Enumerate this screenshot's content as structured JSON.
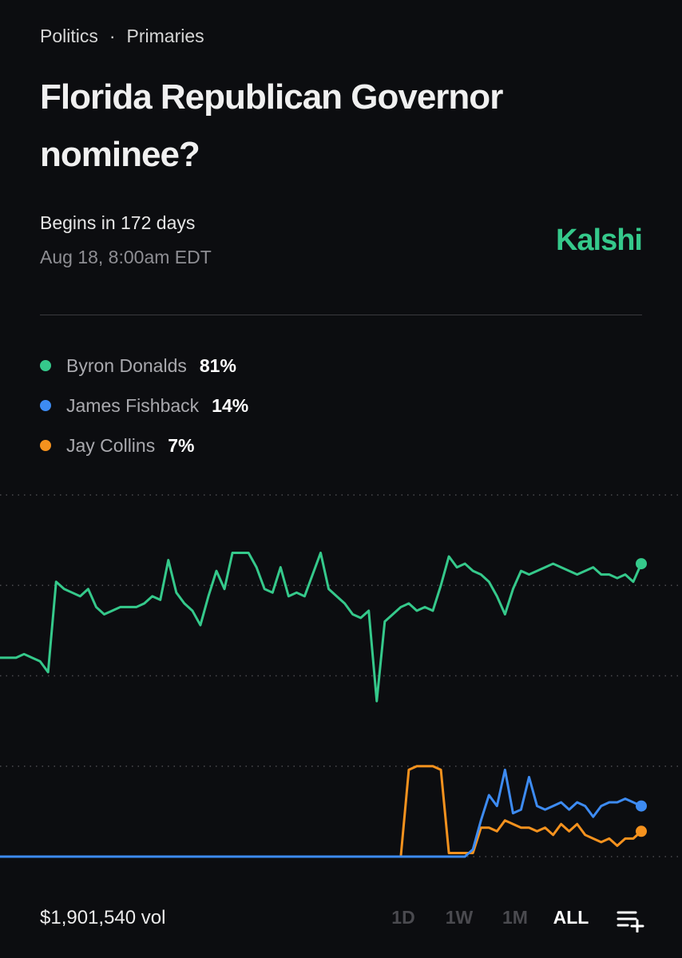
{
  "header": {
    "breadcrumb": [
      "Politics",
      "Primaries"
    ],
    "breadcrumb_separator": "·",
    "title": "Florida Republican Governor nominee?",
    "status": "Begins in 172 days",
    "date": "Aug 18, 8:00am EDT",
    "brand": "Kalshi"
  },
  "chart_data": {
    "type": "line",
    "ylim": [
      0,
      100
    ],
    "yticks": [
      0,
      25,
      50,
      75,
      100
    ],
    "grid": true,
    "series": [
      {
        "name": "Byron Donalds",
        "label": "81%",
        "color": "#35c98b",
        "values": [
          55,
          55,
          55,
          56,
          55,
          54,
          51,
          76,
          74,
          73,
          72,
          74,
          69,
          67,
          68,
          69,
          69,
          69,
          70,
          72,
          71,
          82,
          73,
          70,
          68,
          64,
          72,
          79,
          74,
          84,
          84,
          84,
          80,
          74,
          73,
          80,
          72,
          73,
          72,
          78,
          84,
          74,
          72,
          70,
          67,
          66,
          68,
          43,
          65,
          67,
          69,
          70,
          68,
          69,
          68,
          75,
          83,
          80,
          81,
          79,
          78,
          76,
          72,
          67,
          74,
          79,
          78,
          79,
          80,
          81,
          80,
          79,
          78,
          79,
          80,
          78,
          78,
          77,
          78,
          76,
          81
        ]
      },
      {
        "name": "James Fishback",
        "label": "14%",
        "color": "#3d8bf2",
        "values": [
          0,
          0,
          0,
          0,
          0,
          0,
          0,
          0,
          0,
          0,
          0,
          0,
          0,
          0,
          0,
          0,
          0,
          0,
          0,
          0,
          0,
          0,
          0,
          0,
          0,
          0,
          0,
          0,
          0,
          0,
          0,
          0,
          0,
          0,
          0,
          0,
          0,
          0,
          0,
          0,
          0,
          0,
          0,
          0,
          0,
          0,
          0,
          0,
          0,
          0,
          0,
          0,
          0,
          0,
          0,
          0,
          0,
          0,
          0,
          2,
          10,
          17,
          14,
          24,
          12,
          13,
          22,
          14,
          13,
          14,
          15,
          13,
          15,
          14,
          11,
          14,
          15,
          15,
          16,
          15,
          14
        ]
      },
      {
        "name": "Jay Collins",
        "label": "7%",
        "color": "#f5921e",
        "values": [
          0,
          0,
          0,
          0,
          0,
          0,
          0,
          0,
          0,
          0,
          0,
          0,
          0,
          0,
          0,
          0,
          0,
          0,
          0,
          0,
          0,
          0,
          0,
          0,
          0,
          0,
          0,
          0,
          0,
          0,
          0,
          0,
          0,
          0,
          0,
          0,
          0,
          0,
          0,
          0,
          0,
          0,
          0,
          0,
          0,
          0,
          0,
          0,
          0,
          0,
          0,
          24,
          25,
          25,
          25,
          24,
          1,
          1,
          1,
          1,
          8,
          8,
          7,
          10,
          9,
          8,
          8,
          7,
          8,
          6,
          9,
          7,
          9,
          6,
          5,
          4,
          5,
          3,
          5,
          5,
          7
        ]
      }
    ]
  },
  "footer": {
    "volume": "$1,901,540 vol",
    "ranges": [
      "1D",
      "1W",
      "1M",
      "ALL"
    ],
    "active_range": 3
  }
}
